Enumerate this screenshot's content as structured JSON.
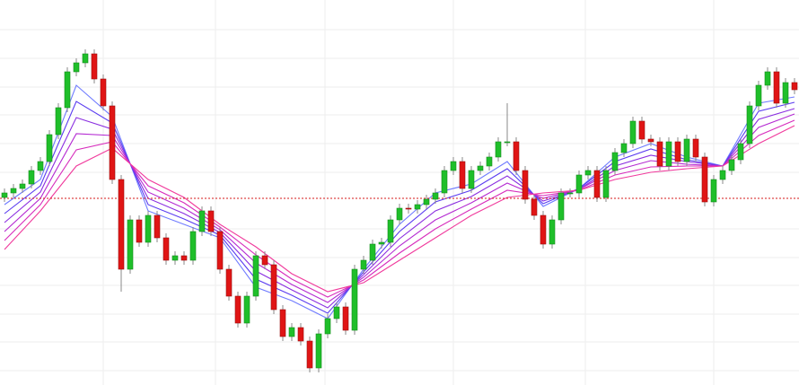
{
  "chart_data": {
    "type": "candlestick",
    "ylim": [
      0,
      429
    ],
    "up_color": "#1fbf2a",
    "down_color": "#e01515",
    "reference_line": 208,
    "reference_color": "#d41a1a",
    "open": [
      209,
      214,
      219,
      224,
      239,
      249,
      279,
      309,
      349,
      359,
      369,
      341,
      311,
      229,
      129,
      184,
      159,
      189,
      164,
      139,
      144,
      139,
      171,
      194,
      171,
      129,
      99,
      69,
      99,
      144,
      134,
      84,
      54,
      64,
      49,
      19,
      57,
      74,
      87,
      61,
      129,
      139,
      157,
      159,
      184,
      197,
      196,
      201,
      207,
      214,
      239,
      249,
      219,
      239,
      244,
      254,
      271,
      271,
      239,
      207,
      189,
      157,
      184,
      214,
      214,
      234,
      239,
      209,
      239,
      259,
      269,
      294,
      274,
      271,
      244,
      271,
      249,
      274,
      254,
      204,
      229,
      239,
      251,
      269,
      311,
      334,
      349,
      314,
      337
    ],
    "high": [
      219,
      224,
      229,
      244,
      254,
      284,
      314,
      354,
      364,
      374,
      374,
      346,
      316,
      234,
      189,
      189,
      194,
      194,
      169,
      149,
      149,
      176,
      199,
      199,
      176,
      134,
      104,
      104,
      149,
      149,
      139,
      89,
      69,
      69,
      54,
      62,
      79,
      92,
      92,
      134,
      144,
      162,
      164,
      189,
      202,
      202,
      206,
      212,
      219,
      244,
      254,
      254,
      244,
      249,
      259,
      276,
      314,
      276,
      244,
      212,
      194,
      189,
      219,
      219,
      239,
      244,
      244,
      244,
      264,
      274,
      299,
      299,
      279,
      276,
      276,
      276,
      279,
      279,
      259,
      234,
      244,
      256,
      274,
      316,
      339,
      354,
      354,
      342,
      342
    ],
    "low": [
      204,
      209,
      214,
      219,
      234,
      244,
      274,
      304,
      344,
      354,
      336,
      306,
      224,
      104,
      124,
      154,
      154,
      159,
      134,
      134,
      134,
      134,
      166,
      166,
      124,
      94,
      64,
      64,
      94,
      129,
      79,
      49,
      49,
      44,
      14,
      14,
      52,
      69,
      56,
      56,
      124,
      134,
      152,
      154,
      179,
      191,
      191,
      196,
      202,
      209,
      234,
      214,
      214,
      234,
      239,
      249,
      266,
      234,
      202,
      184,
      152,
      152,
      179,
      209,
      209,
      229,
      204,
      204,
      234,
      254,
      264,
      269,
      266,
      239,
      239,
      244,
      244,
      249,
      199,
      199,
      224,
      234,
      246,
      264,
      306,
      329,
      309,
      309,
      324
    ],
    "close": [
      214,
      219,
      224,
      239,
      249,
      279,
      309,
      349,
      359,
      369,
      341,
      311,
      229,
      129,
      184,
      159,
      189,
      164,
      139,
      144,
      139,
      171,
      194,
      171,
      129,
      99,
      69,
      99,
      144,
      134,
      84,
      54,
      64,
      49,
      19,
      57,
      74,
      87,
      61,
      129,
      139,
      157,
      159,
      184,
      197,
      196,
      201,
      207,
      214,
      239,
      249,
      219,
      239,
      244,
      254,
      271,
      271,
      239,
      207,
      189,
      157,
      184,
      214,
      214,
      234,
      239,
      209,
      239,
      259,
      269,
      294,
      274,
      271,
      244,
      271,
      249,
      274,
      254,
      204,
      229,
      239,
      251,
      269,
      311,
      334,
      349,
      314,
      337,
      329
    ],
    "ma": [
      {
        "color": "#6f7bff",
        "x": [
          0,
          4,
          8,
          12,
          16,
          20,
          24,
          28,
          32,
          36,
          40,
          44,
          48,
          52,
          56,
          60,
          64,
          68,
          72,
          76,
          80,
          84,
          88
        ],
        "values": [
          201,
          229,
          334,
          299,
          194,
          179,
          164,
          109,
          94,
          74,
          129,
          179,
          214,
          224,
          249,
          199,
          219,
          254,
          269,
          254,
          244,
          314,
          321
        ]
      },
      {
        "color": "#5a3cf0",
        "x": [
          0,
          4,
          8,
          12,
          16,
          20,
          24,
          28,
          32,
          36,
          40,
          44,
          48,
          52,
          56,
          60,
          64,
          68,
          72,
          76,
          80,
          84,
          88
        ],
        "values": [
          191,
          222,
          316,
          292,
          201,
          185,
          167,
          118,
          100,
          80,
          126,
          171,
          204,
          217,
          241,
          202,
          219,
          249,
          263,
          251,
          244,
          305,
          315
        ]
      },
      {
        "color": "#8a2ee0",
        "x": [
          0,
          4,
          8,
          12,
          16,
          20,
          24,
          28,
          32,
          36,
          40,
          44,
          48,
          52,
          56,
          60,
          64,
          68,
          72,
          76,
          80,
          84,
          88
        ],
        "values": [
          181,
          215,
          298,
          285,
          208,
          191,
          170,
          127,
          106,
          86,
          123,
          163,
          194,
          210,
          233,
          205,
          218,
          244,
          256,
          249,
          244,
          296,
          308
        ]
      },
      {
        "color": "#b42ad2",
        "x": [
          0,
          4,
          8,
          12,
          16,
          20,
          24,
          28,
          32,
          36,
          40,
          44,
          48,
          52,
          56,
          60,
          64,
          68,
          72,
          76,
          80,
          84,
          88
        ],
        "values": [
          171,
          208,
          280,
          278,
          215,
          197,
          173,
          136,
          112,
          92,
          120,
          155,
          184,
          203,
          225,
          208,
          218,
          239,
          250,
          246,
          244,
          287,
          302
        ]
      },
      {
        "color": "#d72cbc",
        "x": [
          0,
          4,
          8,
          12,
          16,
          20,
          24,
          28,
          32,
          36,
          40,
          44,
          48,
          52,
          56,
          60,
          64,
          68,
          72,
          76,
          80,
          84,
          88
        ],
        "values": [
          161,
          201,
          262,
          271,
          222,
          203,
          176,
          145,
          118,
          98,
          117,
          147,
          174,
          196,
          217,
          211,
          217,
          234,
          243,
          244,
          244,
          278,
          295
        ]
      },
      {
        "color": "#f03a9c",
        "x": [
          0,
          4,
          8,
          12,
          16,
          20,
          24,
          28,
          32,
          36,
          40,
          44,
          48,
          52,
          56,
          60,
          64,
          68,
          72,
          76,
          80,
          84,
          88
        ],
        "values": [
          151,
          194,
          244,
          264,
          229,
          209,
          179,
          154,
          124,
          104,
          114,
          139,
          164,
          189,
          209,
          214,
          217,
          229,
          237,
          241,
          244,
          269,
          289
        ]
      }
    ]
  }
}
